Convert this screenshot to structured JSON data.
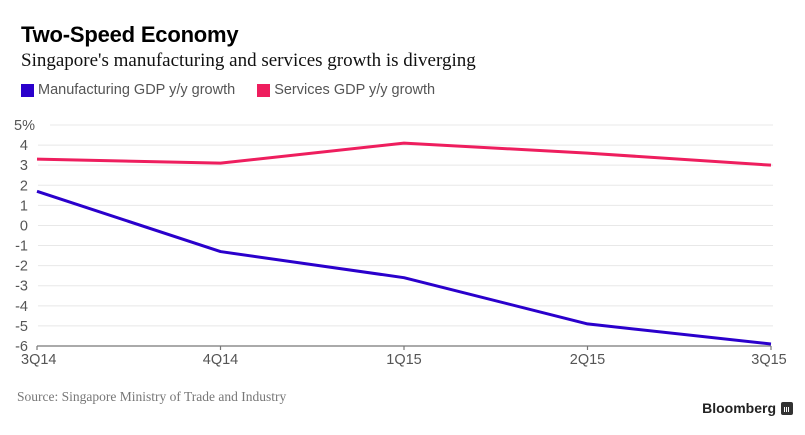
{
  "header": {
    "title": "Two-Speed Economy",
    "subtitle": "Singapore's manufacturing and services growth is diverging"
  },
  "legend": [
    {
      "label": "Manufacturing GDP y/y growth",
      "color": "#2a00cc"
    },
    {
      "label": "Services GDP y/y growth",
      "color": "#ee1e5e"
    }
  ],
  "footer": {
    "source": "Source: Singapore Ministry of Trade and Industry",
    "brand": "Bloomberg"
  },
  "chart_data": {
    "type": "line",
    "title": "Two-Speed Economy",
    "subtitle": "Singapore's manufacturing and services growth is diverging",
    "xlabel": "",
    "ylabel": "",
    "categories": [
      "3Q14",
      "4Q14",
      "1Q15",
      "2Q15",
      "3Q15"
    ],
    "ylim": [
      -6,
      5
    ],
    "yticks": [
      5,
      4,
      3,
      2,
      1,
      0,
      -1,
      -2,
      -3,
      -4,
      -5,
      -6
    ],
    "ytick_labels": [
      "5%",
      "4",
      "3",
      "2",
      "1",
      "0",
      "-1",
      "-2",
      "-3",
      "-4",
      "-5",
      "-6"
    ],
    "grid": true,
    "legend_position": "top-left",
    "series": [
      {
        "name": "Manufacturing GDP y/y growth",
        "color": "#2a00cc",
        "values": [
          1.7,
          -1.3,
          -2.6,
          -4.9,
          -5.9
        ]
      },
      {
        "name": "Services GDP y/y growth",
        "color": "#ee1e5e",
        "values": [
          3.3,
          3.1,
          4.1,
          3.6,
          3.0
        ]
      }
    ]
  }
}
